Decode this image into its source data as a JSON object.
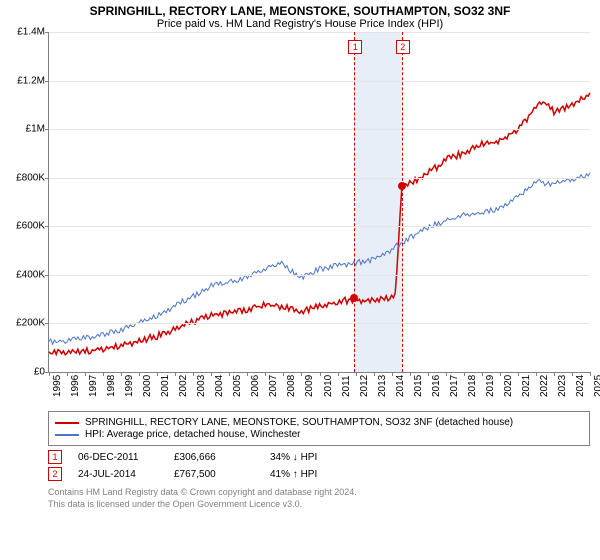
{
  "title": "SPRINGHILL, RECTORY LANE, MEONSTOKE, SOUTHAMPTON, SO32 3NF",
  "subtitle": "Price paid vs. HM Land Registry's House Price Index (HPI)",
  "chart": {
    "type": "line",
    "background_color": "#ffffff",
    "grid_color": "#e5e5e5",
    "axis_color": "#808080",
    "tick_fontsize": 10,
    "x": {
      "min": 1995,
      "max": 2025,
      "ticks": [
        1995,
        1996,
        1997,
        1998,
        1999,
        2000,
        2001,
        2002,
        2003,
        2004,
        2005,
        2006,
        2007,
        2008,
        2009,
        2010,
        2011,
        2012,
        2013,
        2014,
        2015,
        2016,
        2017,
        2018,
        2019,
        2020,
        2021,
        2022,
        2023,
        2024,
        2025
      ]
    },
    "y": {
      "min": 0,
      "max": 1400000,
      "ticks": [
        0,
        200000,
        400000,
        600000,
        800000,
        1000000,
        1200000,
        1400000
      ],
      "tick_labels": [
        "£0",
        "£200K",
        "£400K",
        "£600K",
        "£800K",
        "£1M",
        "£1.2M",
        "£1.4M"
      ]
    },
    "highlight_band": {
      "from": 2011.93,
      "to": 2014.56,
      "color": "#e8eef7"
    },
    "series": [
      {
        "name": "property",
        "label": "SPRINGHILL, RECTORY LANE, MEONSTOKE, SOUTHAMPTON, SO32 3NF (detached house)",
        "color": "#d00000",
        "line_width": 1.5,
        "data": [
          [
            1995,
            85000
          ],
          [
            1996,
            88000
          ],
          [
            1997,
            92000
          ],
          [
            1998,
            100000
          ],
          [
            1999,
            115000
          ],
          [
            2000,
            135000
          ],
          [
            2001,
            155000
          ],
          [
            2002,
            185000
          ],
          [
            2003,
            215000
          ],
          [
            2004,
            240000
          ],
          [
            2005,
            250000
          ],
          [
            2006,
            265000
          ],
          [
            2007,
            285000
          ],
          [
            2008,
            275000
          ],
          [
            2009,
            255000
          ],
          [
            2010,
            280000
          ],
          [
            2011,
            295000
          ],
          [
            2011.93,
            306666
          ],
          [
            2012.5,
            300000
          ],
          [
            2013,
            305000
          ],
          [
            2013.8,
            310000
          ],
          [
            2014.2,
            320000
          ],
          [
            2014.56,
            767500
          ],
          [
            2015,
            790000
          ],
          [
            2015.5,
            800000
          ],
          [
            2016,
            830000
          ],
          [
            2016.5,
            850000
          ],
          [
            2017,
            880000
          ],
          [
            2017.5,
            895000
          ],
          [
            2018,
            910000
          ],
          [
            2018.5,
            930000
          ],
          [
            2019,
            945000
          ],
          [
            2019.5,
            950000
          ],
          [
            2020,
            960000
          ],
          [
            2020.5,
            980000
          ],
          [
            2021,
            1010000
          ],
          [
            2021.5,
            1050000
          ],
          [
            2022,
            1100000
          ],
          [
            2022.5,
            1120000
          ],
          [
            2023,
            1080000
          ],
          [
            2023.5,
            1090000
          ],
          [
            2024,
            1110000
          ],
          [
            2024.5,
            1130000
          ],
          [
            2025,
            1150000
          ]
        ]
      },
      {
        "name": "hpi",
        "label": "HPI: Average price, detached house, Winchester",
        "color": "#4a74c9",
        "line_width": 1,
        "data": [
          [
            1995,
            130000
          ],
          [
            1996,
            135000
          ],
          [
            1997,
            145000
          ],
          [
            1998,
            160000
          ],
          [
            1999,
            180000
          ],
          [
            2000,
            210000
          ],
          [
            2001,
            235000
          ],
          [
            2002,
            280000
          ],
          [
            2003,
            320000
          ],
          [
            2004,
            360000
          ],
          [
            2005,
            375000
          ],
          [
            2006,
            400000
          ],
          [
            2007,
            430000
          ],
          [
            2007.8,
            460000
          ],
          [
            2008.5,
            420000
          ],
          [
            2009,
            395000
          ],
          [
            2010,
            430000
          ],
          [
            2011,
            445000
          ],
          [
            2012,
            455000
          ],
          [
            2013,
            470000
          ],
          [
            2014,
            510000
          ],
          [
            2015,
            560000
          ],
          [
            2016,
            600000
          ],
          [
            2017,
            630000
          ],
          [
            2018,
            650000
          ],
          [
            2019,
            660000
          ],
          [
            2020,
            680000
          ],
          [
            2021,
            730000
          ],
          [
            2022,
            790000
          ],
          [
            2023,
            780000
          ],
          [
            2024,
            800000
          ],
          [
            2025,
            820000
          ]
        ]
      }
    ],
    "markers": [
      {
        "n": "1",
        "x": 2011.93,
        "y": 306666,
        "color": "#d00000"
      },
      {
        "n": "2",
        "x": 2014.56,
        "y": 767500,
        "color": "#d00000"
      }
    ]
  },
  "legend": {
    "border_color": "#808080",
    "items": [
      {
        "color": "#d00000",
        "label": "SPRINGHILL, RECTORY LANE, MEONSTOKE, SOUTHAMPTON, SO32 3NF (detached house)"
      },
      {
        "color": "#4a74c9",
        "label": "HPI: Average price, detached house, Winchester"
      }
    ]
  },
  "sales": [
    {
      "n": "1",
      "color": "#d00000",
      "date": "06-DEC-2011",
      "price": "£306,666",
      "pct": "34%",
      "arrow": "↓",
      "vs": "HPI"
    },
    {
      "n": "2",
      "color": "#d00000",
      "date": "24-JUL-2014",
      "price": "£767,500",
      "pct": "41%",
      "arrow": "↑",
      "vs": "HPI"
    }
  ],
  "footer": {
    "line1": "Contains HM Land Registry data © Crown copyright and database right 2024.",
    "line2": "This data is licensed under the Open Government Licence v3.0.",
    "color": "#808080"
  }
}
